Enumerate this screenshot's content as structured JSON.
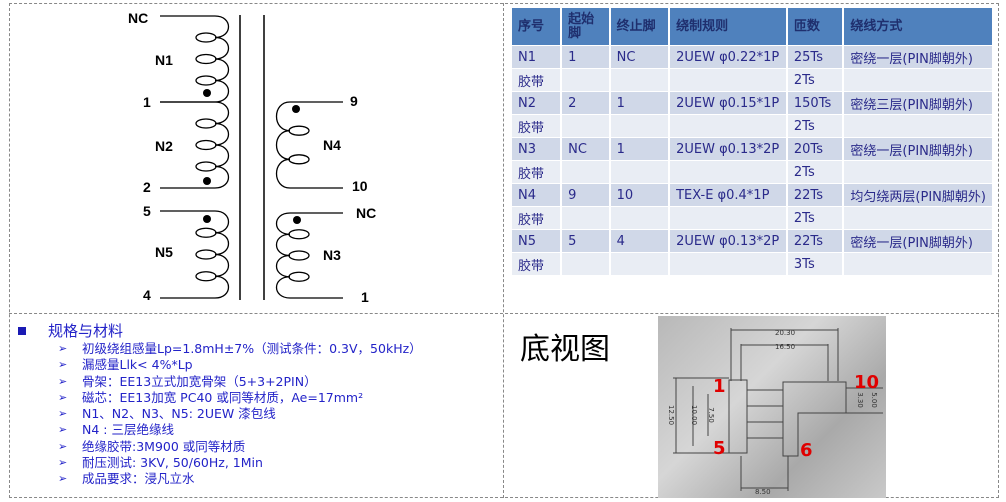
{
  "schematic": {
    "pins": {
      "n1_top": "NC",
      "n1_bottom": "1",
      "n2_bottom": "2",
      "n5_top": "5",
      "n5_bottom": "4",
      "n4_top": "9",
      "n4_bottom": "10",
      "n3_top": "NC",
      "n3_bottom": "1"
    },
    "windings": [
      "N1",
      "N2",
      "N5",
      "N4",
      "N3"
    ]
  },
  "table": {
    "headers": [
      "序号",
      "起始脚",
      "终止脚",
      "绕制规则",
      "匝数",
      "绕线方式"
    ],
    "rows": [
      [
        "N1",
        "1",
        "NC",
        "2UEW φ0.22*1P",
        "25Ts",
        "密绕一层(PIN脚朝外)"
      ],
      [
        "胶带",
        "",
        "",
        "",
        "2Ts",
        ""
      ],
      [
        "N2",
        "2",
        "1",
        "2UEW φ0.15*1P",
        "150Ts",
        "密绕三层(PIN脚朝外)"
      ],
      [
        "胶带",
        "",
        "",
        "",
        "2Ts",
        ""
      ],
      [
        "N3",
        "NC",
        "1",
        "2UEW φ0.13*2P",
        "20Ts",
        "密绕一层(PIN脚朝外)"
      ],
      [
        "胶带",
        "",
        "",
        "",
        "2Ts",
        ""
      ],
      [
        "N4",
        "9",
        "10",
        "TEX-E φ0.4*1P",
        "22Ts",
        "均匀绕两层(PIN脚朝外)"
      ],
      [
        "胶带",
        "",
        "",
        "",
        "2Ts",
        ""
      ],
      [
        "N5",
        "5",
        "4",
        "2UEW φ0.13*2P",
        "22Ts",
        "密绕一层(PIN脚朝外)"
      ],
      [
        "胶带",
        "",
        "",
        "",
        "3Ts",
        ""
      ]
    ]
  },
  "specs": {
    "title": "规格与材料",
    "items": [
      "初级绕组感量Lp=1.8mH±7%（测试条件：0.3V，50kHz）",
      "漏感量Llk< 4%*Lp",
      "骨架：EE13立式加宽骨架（5+3+2PIN）",
      "磁芯：EE13加宽 PC40 或同等材质，Ae=17mm²",
      "N1、N2、N3、N5: 2UEW 漆包线",
      "N4 : 三层绝缘线",
      "绝缘胶带:3M900 或同等材质",
      "耐压测试: 3KV, 50/60Hz, 1Min",
      "成品要求：浸凡立水"
    ]
  },
  "bottom_view": {
    "title": "底视图",
    "pin_labels": [
      "1",
      "5",
      "6",
      "10"
    ],
    "dimensions": [
      "20.30",
      "16.50",
      "8.50",
      "12.50",
      "10.00",
      "7.50",
      "3.30",
      "5.00"
    ]
  },
  "colors": {
    "table_header": "#4f81bd",
    "row_odd": "#d0d8e8",
    "row_even": "#e9edf4",
    "spec_text": "#2323c8",
    "pin_label": "#e00000"
  }
}
